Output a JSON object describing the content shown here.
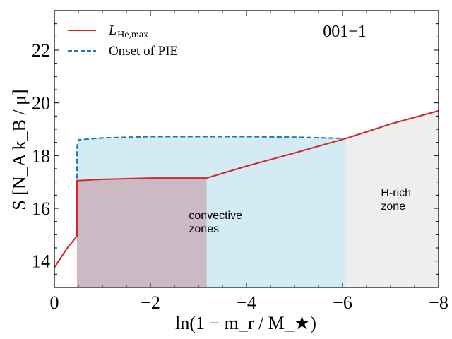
{
  "chart_data": {
    "type": "line",
    "title": "",
    "panel_label": "001−1",
    "xlabel": "ln(1 − m_r / M_★)",
    "ylabel": "S [N_A k_B / μ]",
    "xlim": [
      0,
      -8
    ],
    "ylim": [
      13,
      23.5
    ],
    "x_ticks": [
      0,
      -2,
      -4,
      -6,
      -8
    ],
    "x_tick_labels": [
      "0",
      "−2",
      "−4",
      "−6",
      "−8"
    ],
    "y_ticks": [
      14,
      16,
      18,
      20,
      22
    ],
    "y_tick_labels": [
      "14",
      "16",
      "18",
      "20",
      "22"
    ],
    "legend_position": "top-left",
    "series": [
      {
        "name": "L_He,max",
        "legend_label": "L",
        "legend_sub": "He,max",
        "color": "#d62728",
        "style": "solid",
        "x": [
          0,
          -0.25,
          -0.47,
          -0.47,
          -1.0,
          -2.0,
          -3.17,
          -4.0,
          -5.0,
          -6.07,
          -7.0,
          -8.0
        ],
        "y": [
          13.75,
          14.45,
          14.95,
          17.05,
          17.1,
          17.15,
          17.15,
          17.6,
          18.1,
          18.65,
          19.2,
          19.7
        ]
      },
      {
        "name": "Onset of PIE",
        "legend_label": "Onset of PIE",
        "color": "#1f77b4",
        "style": "dashed",
        "x": [
          0,
          -0.25,
          -0.47,
          -0.47,
          -0.5,
          -1.0,
          -2.0,
          -3.0,
          -4.0,
          -5.0,
          -6.07,
          -7.0,
          -8.0
        ],
        "y": [
          13.75,
          14.45,
          14.95,
          18.3,
          18.6,
          18.67,
          18.72,
          18.72,
          18.72,
          18.7,
          18.65,
          19.2,
          19.7
        ]
      }
    ],
    "regions": [
      {
        "name": "convective-zone-inner",
        "color": "#c48a94",
        "x_range": [
          -0.47,
          -3.17
        ],
        "top_series": "L_He,max"
      },
      {
        "name": "convective-zone-outer",
        "color": "#a8d8e6",
        "x_range": [
          -0.47,
          -6.07
        ],
        "top_series": "Onset of PIE"
      },
      {
        "name": "h-rich-zone",
        "color": "#e3e3e3",
        "x_range": [
          -6.07,
          -8.0
        ],
        "top_series": "L_He,max"
      }
    ],
    "annotations": [
      {
        "name": "convective-label",
        "lines": [
          "convective",
          "zones"
        ],
        "x": -2.8,
        "y": 15.6
      },
      {
        "name": "h-rich-label",
        "lines": [
          "H-rich",
          "zone"
        ],
        "x": -6.8,
        "y": 16.45
      }
    ]
  }
}
